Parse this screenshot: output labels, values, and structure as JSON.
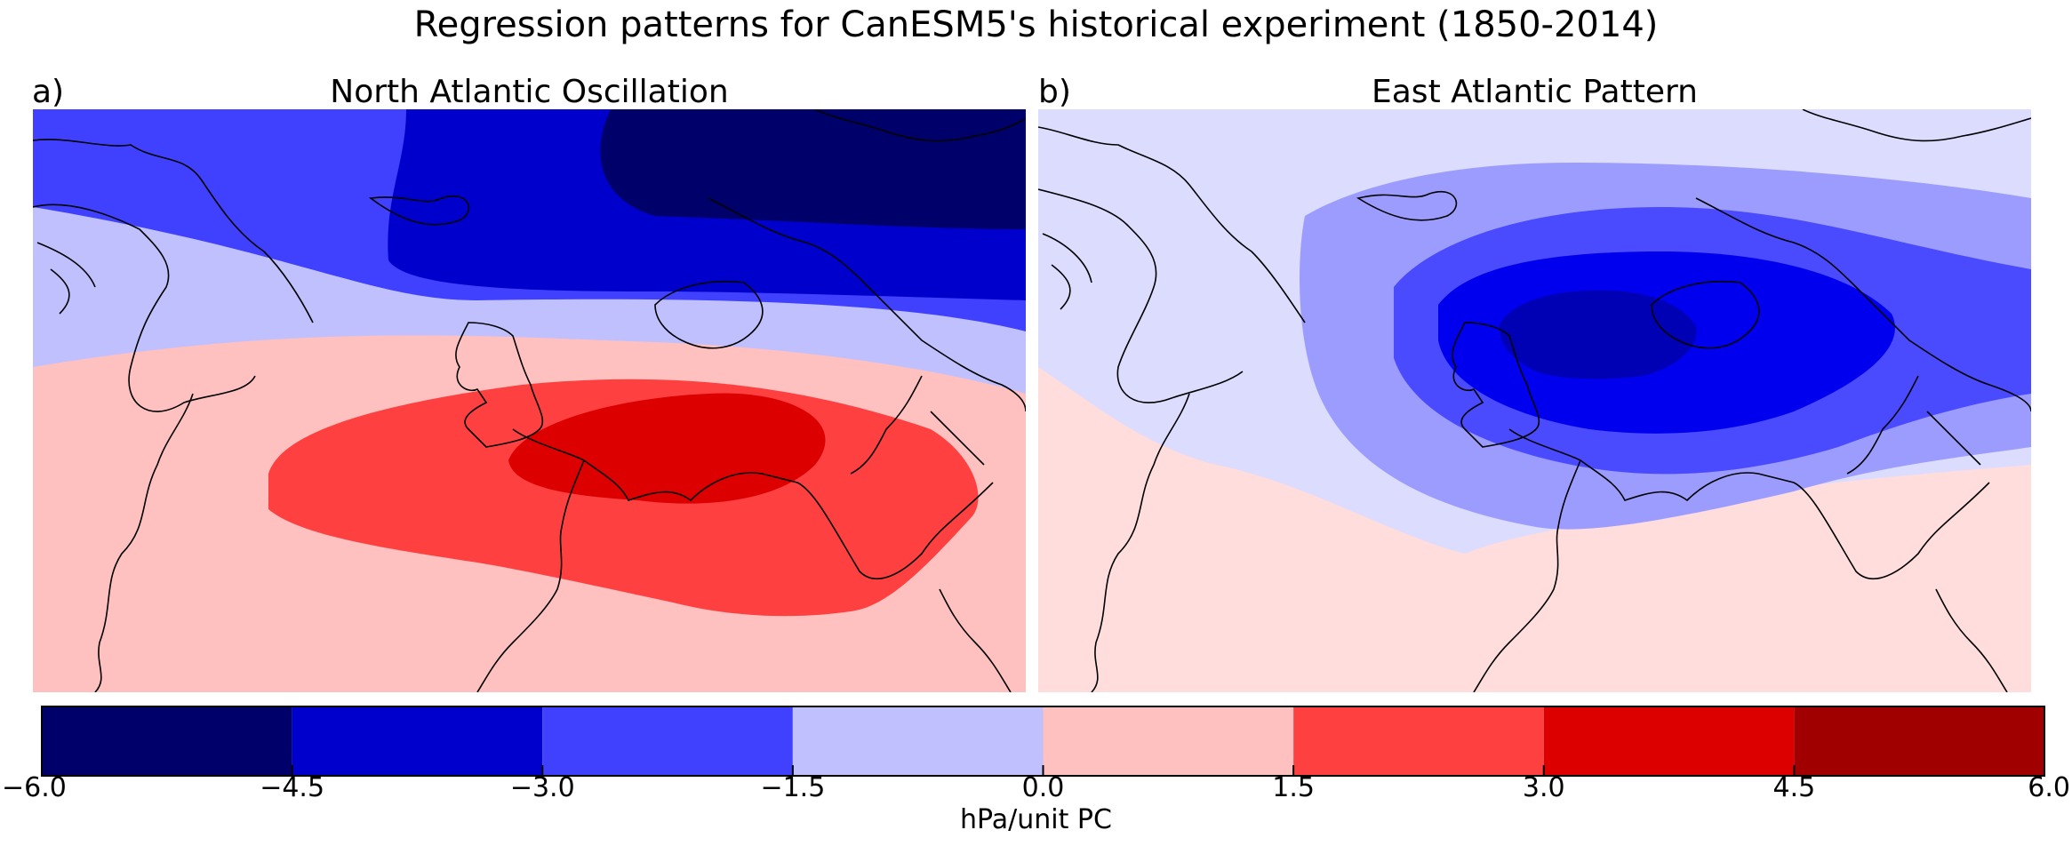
{
  "figure": {
    "title": "Regression patterns for CanESM5's historical experiment (1850-2014)"
  },
  "panels": [
    {
      "label": "a)",
      "title": "North Atlantic Oscillation"
    },
    {
      "label": "b)",
      "title": "East Atlantic Pattern"
    }
  ],
  "colorbar": {
    "label": "hPa/unit PC",
    "ticks": [
      "−6.0",
      "−4.5",
      "−3.0",
      "−1.5",
      "0.0",
      "1.5",
      "3.0",
      "4.5",
      "6.0"
    ],
    "levels": [
      -6.0,
      -4.5,
      -3.0,
      -1.5,
      0.0,
      1.5,
      3.0,
      4.5,
      6.0
    ],
    "colors": [
      "#00006b",
      "#0000cc",
      "#4040ff",
      "#c0c0ff",
      "#ffc0c0",
      "#ff4040",
      "#dd0000",
      "#a00000"
    ]
  },
  "map_colors": {
    "nao": {
      "background": "#ffc0c0",
      "negative_light": "#c0c0ff",
      "negative_mid": "#4040ff",
      "negative_strong": "#0000cc",
      "negative_extreme": "#00006b",
      "positive_mid": "#ff4040",
      "positive_strong": "#dd0000"
    },
    "eap": {
      "background": "#ffdddd",
      "negative_faint": "#dcdcff",
      "negative_light": "#9c9cff",
      "negative_mid": "#4a4aff",
      "negative_strong": "#0000ee",
      "negative_extreme": "#0000b4"
    },
    "coastline": "#000000"
  }
}
